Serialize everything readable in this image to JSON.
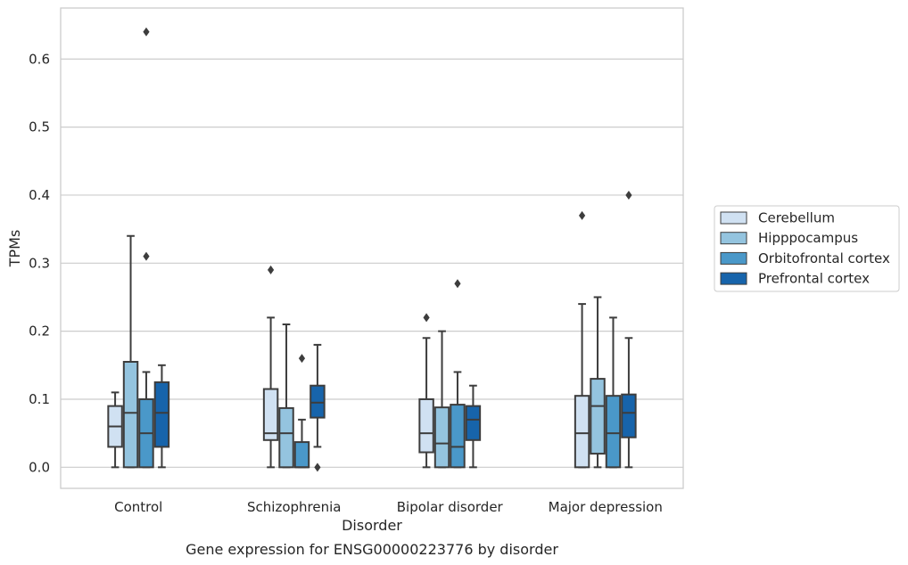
{
  "chart_data": {
    "type": "boxplot",
    "title": "",
    "caption": "Gene expression for ENSG00000223776 by disorder",
    "xlabel": "Disorder",
    "ylabel": "TPMs",
    "ylim": [
      -0.031,
      0.675
    ],
    "yticks": [
      0.0,
      0.1,
      0.2,
      0.3,
      0.4,
      0.5,
      0.6
    ],
    "ytick_labels": [
      "0.0",
      "0.1",
      "0.2",
      "0.3",
      "0.4",
      "0.5",
      "0.6"
    ],
    "grid": "horizontal",
    "legend_position": "right",
    "categories": [
      "Control",
      "Schizophrenia",
      "Bipolar disorder",
      "Major depression"
    ],
    "series": [
      {
        "name": "Cerebellum",
        "color": "#d0e1f2",
        "boxes": [
          {
            "whislo": 0.0,
            "q1": 0.03,
            "med": 0.06,
            "q3": 0.09,
            "whishi": 0.11,
            "fliers": []
          },
          {
            "whislo": 0.0,
            "q1": 0.04,
            "med": 0.05,
            "q3": 0.115,
            "whishi": 0.22,
            "fliers": [
              0.29
            ]
          },
          {
            "whislo": 0.0,
            "q1": 0.022,
            "med": 0.05,
            "q3": 0.1,
            "whishi": 0.19,
            "fliers": [
              0.22
            ]
          },
          {
            "whislo": 0.0,
            "q1": 0.0,
            "med": 0.05,
            "q3": 0.105,
            "whishi": 0.24,
            "fliers": [
              0.37
            ]
          }
        ]
      },
      {
        "name": "Hipppocampus",
        "color": "#94c4df",
        "boxes": [
          {
            "whislo": 0.0,
            "q1": 0.0,
            "med": 0.08,
            "q3": 0.155,
            "whishi": 0.34,
            "fliers": []
          },
          {
            "whislo": 0.0,
            "q1": 0.0,
            "med": 0.05,
            "q3": 0.087,
            "whishi": 0.21,
            "fliers": []
          },
          {
            "whislo": 0.0,
            "q1": 0.0,
            "med": 0.035,
            "q3": 0.088,
            "whishi": 0.2,
            "fliers": []
          },
          {
            "whislo": 0.0,
            "q1": 0.02,
            "med": 0.09,
            "q3": 0.13,
            "whishi": 0.25,
            "fliers": []
          }
        ]
      },
      {
        "name": "Orbitofrontal cortex",
        "color": "#4a98c9",
        "boxes": [
          {
            "whislo": 0.0,
            "q1": 0.0,
            "med": 0.05,
            "q3": 0.1,
            "whishi": 0.14,
            "fliers": [
              0.31,
              0.64
            ]
          },
          {
            "whislo": 0.0,
            "q1": 0.0,
            "med": 0.0,
            "q3": 0.037,
            "whishi": 0.07,
            "fliers": [
              0.16
            ]
          },
          {
            "whislo": 0.0,
            "q1": 0.0,
            "med": 0.03,
            "q3": 0.092,
            "whishi": 0.14,
            "fliers": [
              0.27
            ]
          },
          {
            "whislo": 0.0,
            "q1": 0.0,
            "med": 0.05,
            "q3": 0.105,
            "whishi": 0.22,
            "fliers": []
          }
        ]
      },
      {
        "name": "Prefrontal cortex",
        "color": "#1764ab",
        "boxes": [
          {
            "whislo": 0.0,
            "q1": 0.03,
            "med": 0.08,
            "q3": 0.125,
            "whishi": 0.15,
            "fliers": []
          },
          {
            "whislo": 0.03,
            "q1": 0.073,
            "med": 0.095,
            "q3": 0.12,
            "whishi": 0.18,
            "fliers": [
              0.0
            ]
          },
          {
            "whislo": 0.0,
            "q1": 0.04,
            "med": 0.07,
            "q3": 0.09,
            "whishi": 0.12,
            "fliers": []
          },
          {
            "whislo": 0.0,
            "q1": 0.044,
            "med": 0.08,
            "q3": 0.107,
            "whishi": 0.19,
            "fliers": [
              0.4
            ]
          }
        ]
      }
    ]
  }
}
